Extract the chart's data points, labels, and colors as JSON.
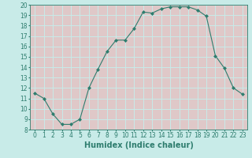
{
  "x": [
    0,
    1,
    2,
    3,
    4,
    5,
    6,
    7,
    8,
    9,
    10,
    11,
    12,
    13,
    14,
    15,
    16,
    17,
    18,
    19,
    20,
    21,
    22,
    23
  ],
  "y": [
    11.5,
    11.0,
    9.5,
    8.5,
    8.5,
    9.0,
    12.0,
    13.8,
    15.5,
    16.6,
    16.6,
    17.7,
    19.3,
    19.2,
    19.6,
    19.8,
    19.8,
    19.8,
    19.5,
    18.9,
    15.1,
    13.9,
    12.0,
    11.4
  ],
  "line_color": "#2e7d6e",
  "marker": "D",
  "marker_size": 2.0,
  "bg_color": "#c8ebe8",
  "plot_bg_color": "#dfc8c8",
  "grid_color": "#c8ebe8",
  "xlabel": "Humidex (Indice chaleur)",
  "xlim": [
    -0.5,
    23.5
  ],
  "ylim": [
    8,
    20
  ],
  "yticks": [
    8,
    9,
    10,
    11,
    12,
    13,
    14,
    15,
    16,
    17,
    18,
    19,
    20
  ],
  "xticks": [
    0,
    1,
    2,
    3,
    4,
    5,
    6,
    7,
    8,
    9,
    10,
    11,
    12,
    13,
    14,
    15,
    16,
    17,
    18,
    19,
    20,
    21,
    22,
    23
  ],
  "tick_color": "#2e7d6e",
  "label_fontsize": 7,
  "tick_fontsize": 5.5
}
